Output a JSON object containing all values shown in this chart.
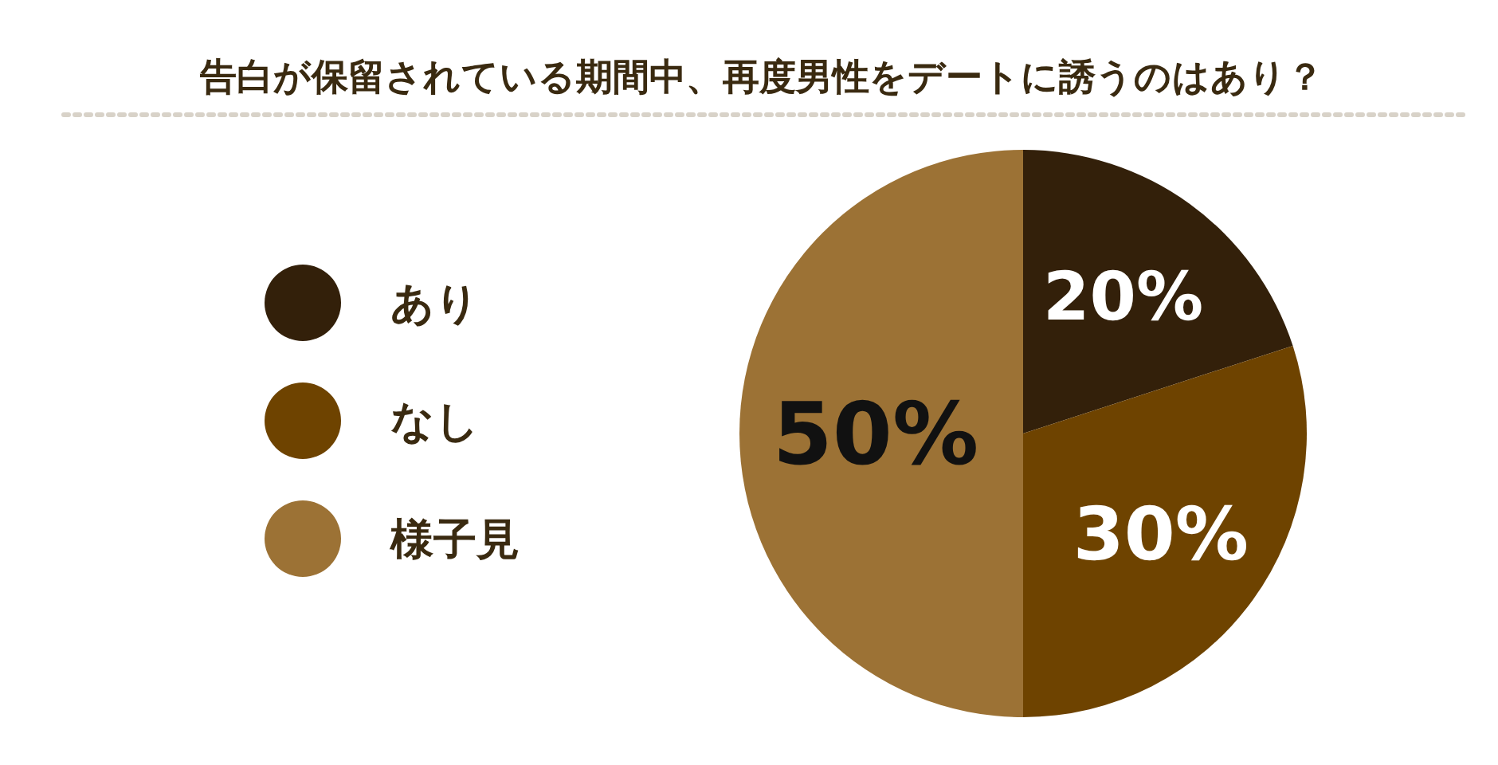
{
  "chart_data": {
    "type": "pie",
    "title": "告白が保留されている期間中、再度男性をデートに誘うのはあり？",
    "categories": [
      "あり",
      "なし",
      "様子見"
    ],
    "values": [
      20,
      30,
      50
    ],
    "colors": [
      "#33200a",
      "#6e4300",
      "#9c7235"
    ],
    "value_labels": [
      "20%",
      "30%",
      "50%"
    ],
    "legend": "left"
  }
}
